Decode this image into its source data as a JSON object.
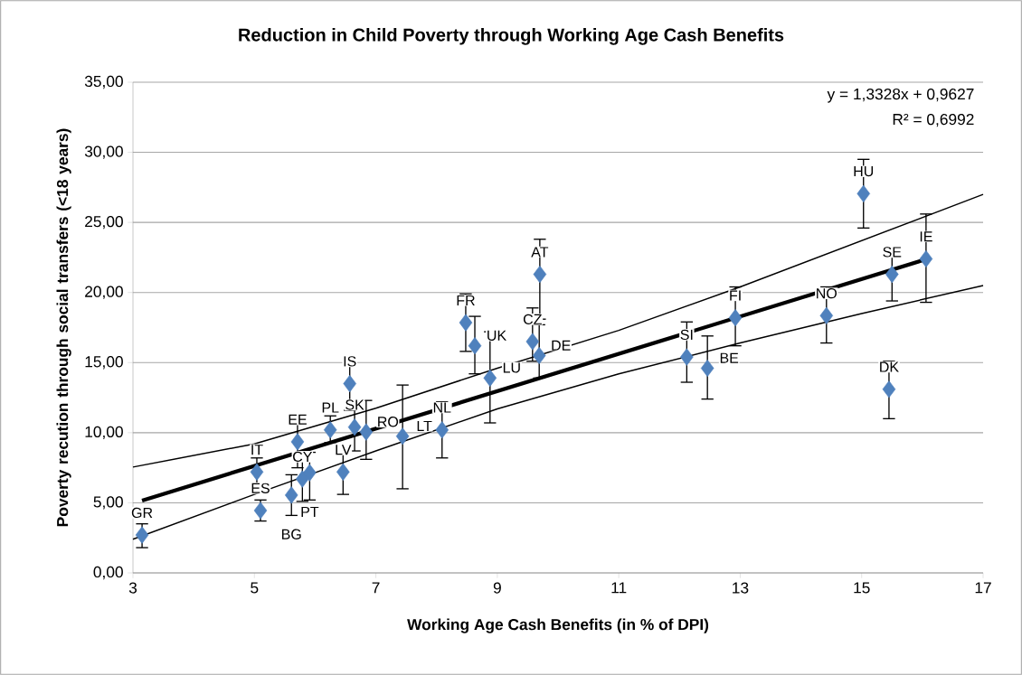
{
  "chart_data": {
    "type": "scatter",
    "title": "Reduction in Child Poverty through Working Age Cash Benefits",
    "xlabel": "Working Age Cash Benefits (in % of DPI)",
    "ylabel": "Poverty recution through social transfers (<18 years)",
    "xlim": [
      3,
      17
    ],
    "xticks": [
      3,
      5,
      7,
      9,
      11,
      13,
      15,
      17
    ],
    "ylim": [
      0,
      35
    ],
    "yticks": [
      {
        "value": 0,
        "label": "0,00"
      },
      {
        "value": 5,
        "label": "5,00"
      },
      {
        "value": 10,
        "label": "10,00"
      },
      {
        "value": 15,
        "label": "15,00"
      },
      {
        "value": 20,
        "label": "20,00"
      },
      {
        "value": 25,
        "label": "25,00"
      },
      {
        "value": 30,
        "label": "30,00"
      },
      {
        "value": 35,
        "label": "35,00"
      }
    ],
    "grid": "y",
    "series": [
      {
        "color": "#4f81bd",
        "marker": "diamond",
        "x": [
          3.15,
          5.1,
          5.04,
          5.61,
          5.79,
          5.91,
          5.71,
          6.25,
          6.46,
          6.65,
          6.84,
          6.57,
          7.44,
          8.09,
          8.48,
          8.63,
          8.88,
          9.58,
          9.69,
          9.7,
          12.12,
          12.46,
          12.92,
          14.42,
          15.03,
          15.5,
          15.45,
          16.06
        ],
        "values": [
          2.7,
          4.45,
          7.2,
          5.55,
          6.7,
          7.15,
          9.35,
          10.2,
          7.2,
          10.4,
          10.05,
          13.5,
          9.75,
          10.2,
          17.85,
          16.2,
          13.9,
          16.5,
          15.5,
          21.3,
          15.4,
          14.6,
          18.2,
          18.35,
          27.05,
          21.3,
          13.1,
          22.4
        ],
        "errors": [
          [
            1.8,
            3.5
          ],
          [
            3.7,
            5.2
          ],
          [
            6.3,
            8.2
          ],
          [
            4.1,
            7.0
          ],
          [
            5.1,
            8.3
          ],
          [
            5.2,
            8.6
          ],
          [
            7.5,
            11.2
          ],
          [
            9.3,
            11.2
          ],
          [
            5.6,
            9.0
          ],
          [
            8.7,
            11.9
          ],
          [
            8.1,
            12.3
          ],
          [
            11.6,
            15.4
          ],
          [
            6.0,
            13.4
          ],
          [
            8.2,
            12.2
          ],
          [
            15.8,
            19.9
          ],
          [
            14.2,
            18.3
          ],
          [
            10.7,
            17.2
          ],
          [
            15.1,
            18.9
          ],
          [
            13.9,
            17.7
          ],
          [
            18.1,
            23.8
          ],
          [
            13.6,
            17.9
          ],
          [
            12.4,
            16.9
          ],
          [
            16.2,
            20.4
          ],
          [
            16.4,
            20.4
          ],
          [
            24.6,
            29.5
          ],
          [
            19.4,
            23.1
          ],
          [
            11.0,
            15.1
          ],
          [
            19.3,
            25.6
          ]
        ]
      },
      {
        "type": "line",
        "color": "#000000",
        "marker": "none",
        "line_style": "solid",
        "x": [
          3.15,
          16.06
        ],
        "values": [
          5.16,
          22.37
        ]
      },
      {
        "type": "line",
        "color": "#000000",
        "marker": "none",
        "line_style": "solid",
        "x": [
          3,
          5,
          7,
          9,
          11,
          13,
          15,
          17
        ],
        "values": [
          7.55,
          9.2,
          11.75,
          14.6,
          17.3,
          20.4,
          23.7,
          27.0
        ]
      },
      {
        "type": "line",
        "color": "#000000",
        "marker": "none",
        "line_style": "solid",
        "x": [
          3,
          5,
          7,
          9,
          11,
          13,
          15,
          17
        ],
        "values": [
          2.4,
          5.6,
          8.7,
          11.7,
          14.2,
          16.4,
          18.5,
          20.5
        ]
      }
    ],
    "annotations": [
      "y = 1,3328x + 0,9627",
      "R² = 0,6992",
      {
        "text": "GR",
        "x": 3.15,
        "y": 2.7
      },
      {
        "text": "ES",
        "x": 5.1,
        "y": 4.45
      },
      {
        "text": "IT",
        "x": 5.04,
        "y": 7.2
      },
      {
        "text": "BG",
        "x": 5.61,
        "y": 5.55
      },
      {
        "text": "CY",
        "x": 5.79,
        "y": 6.7
      },
      {
        "text": "PT",
        "x": 5.91,
        "y": 7.15
      },
      {
        "text": "EE",
        "x": 5.71,
        "y": 9.35
      },
      {
        "text": "PL",
        "x": 6.25,
        "y": 10.2
      },
      {
        "text": "LV",
        "x": 6.46,
        "y": 7.2
      },
      {
        "text": "SK",
        "x": 6.65,
        "y": 10.4
      },
      {
        "text": "RO",
        "x": 6.84,
        "y": 10.05
      },
      {
        "text": "IS",
        "x": 6.57,
        "y": 13.5
      },
      {
        "text": "LT",
        "x": 7.44,
        "y": 9.75
      },
      {
        "text": "NL",
        "x": 8.09,
        "y": 10.2
      },
      {
        "text": "FR",
        "x": 8.48,
        "y": 17.85
      },
      {
        "text": "UK",
        "x": 8.63,
        "y": 16.2
      },
      {
        "text": "LU",
        "x": 8.88,
        "y": 13.9
      },
      {
        "text": "CZ",
        "x": 9.58,
        "y": 16.5
      },
      {
        "text": "DE",
        "x": 9.69,
        "y": 15.5
      },
      {
        "text": "AT",
        "x": 9.7,
        "y": 21.3
      },
      {
        "text": "SI",
        "x": 12.12,
        "y": 15.4
      },
      {
        "text": "BE",
        "x": 12.46,
        "y": 14.6
      },
      {
        "text": "FI",
        "x": 12.92,
        "y": 18.2
      },
      {
        "text": "NO",
        "x": 14.42,
        "y": 18.35
      },
      {
        "text": "HU",
        "x": 15.03,
        "y": 27.05
      },
      {
        "text": "SE",
        "x": 15.5,
        "y": 21.3
      },
      {
        "text": "DK",
        "x": 15.45,
        "y": 13.1
      },
      {
        "text": "IE",
        "x": 16.06,
        "y": 22.4
      }
    ]
  }
}
